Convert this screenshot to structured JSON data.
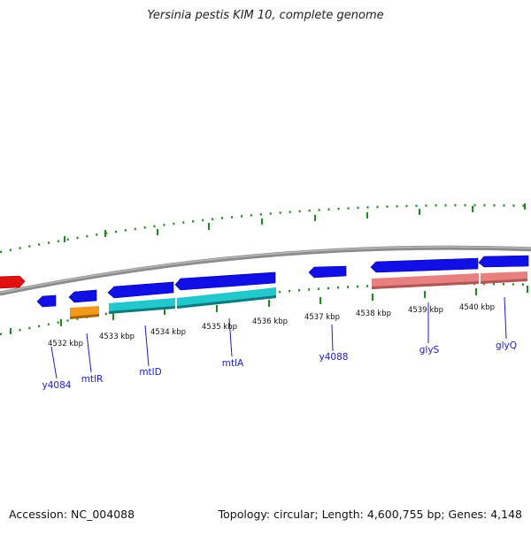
{
  "title": "Yersinia pestis KIM 10, complete genome",
  "footer": {
    "accession_label": "Accession: NC_004088",
    "info_label": "Topology: circular; Length: 4,600,755 bp; Genes: 4,148"
  },
  "ticks": [
    "4532 kbp",
    "4533 kbp",
    "4534 kbp",
    "4535 kbp",
    "4536 kbp",
    "4537 kbp",
    "4538 kbp",
    "4539 kbp",
    "4540 kbp"
  ],
  "genes": [
    "y4084",
    "mtlR",
    "mtlD",
    "mtlA",
    "y4088",
    "glyS",
    "glyQ"
  ],
  "colors": {
    "cds": "#1010e6",
    "cds_red": "#e11111",
    "rna_cyan": "#22c8cc",
    "rna_orange": "#f39a1c",
    "rna_pink": "#e88080",
    "backbone": "#8c8c8c",
    "gc_tick": "#1d8a1d",
    "gene_label": "#1a1acd"
  }
}
